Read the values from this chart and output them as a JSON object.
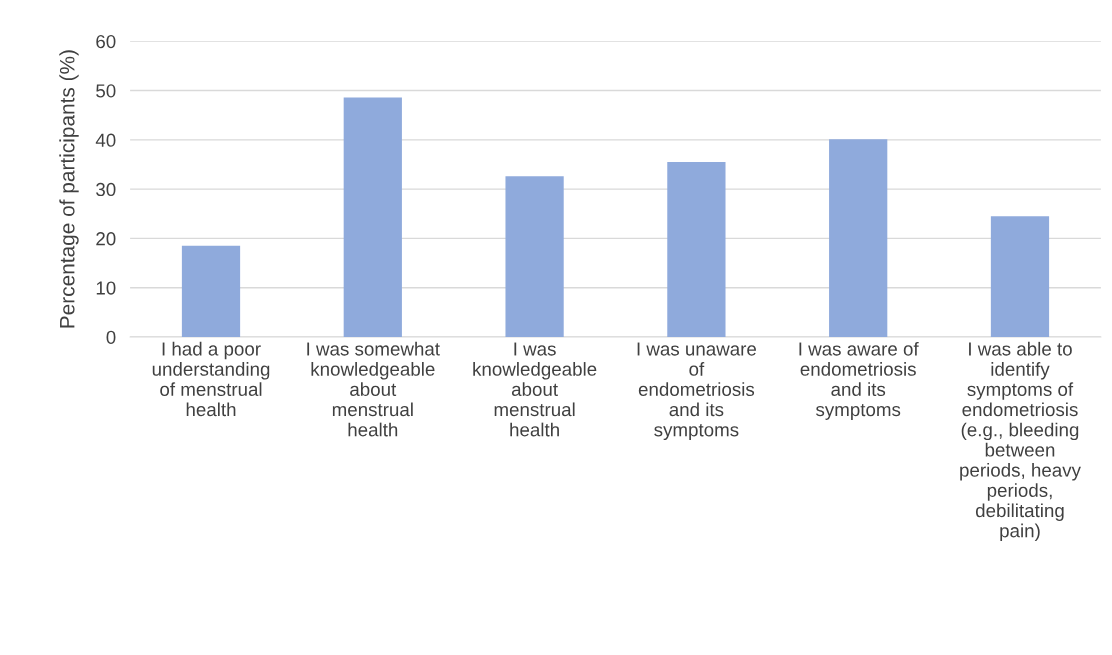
{
  "chart_data": {
    "type": "bar",
    "ylabel": "Percentage of participants (%)",
    "categories": [
      "I had a poor\nunderstanding\nof menstrual\nhealth",
      "I was somewhat\nknowledgeable\nabout\nmenstrual\nhealth",
      "I was\nknowledgeable\nabout\nmenstrual\nhealth",
      "I was unaware\nof\nendometriosis\nand its\nsymptoms",
      "I was aware of\nendometriosis\nand its\nsymptoms",
      "I was able to\nidentify\nsymptoms of\nendometriosis\n(e.g., bleeding\nbetween\nperiods, heavy\nperiods,\ndebilitating\npain)"
    ],
    "values": [
      18.5,
      48.6,
      32.6,
      35.5,
      40.1,
      24.5
    ],
    "color": "#8faadc",
    "ylim": [
      0,
      60
    ],
    "yticks": [
      0,
      10,
      20,
      30,
      40,
      50,
      60
    ],
    "grid": "y",
    "legend": false
  }
}
